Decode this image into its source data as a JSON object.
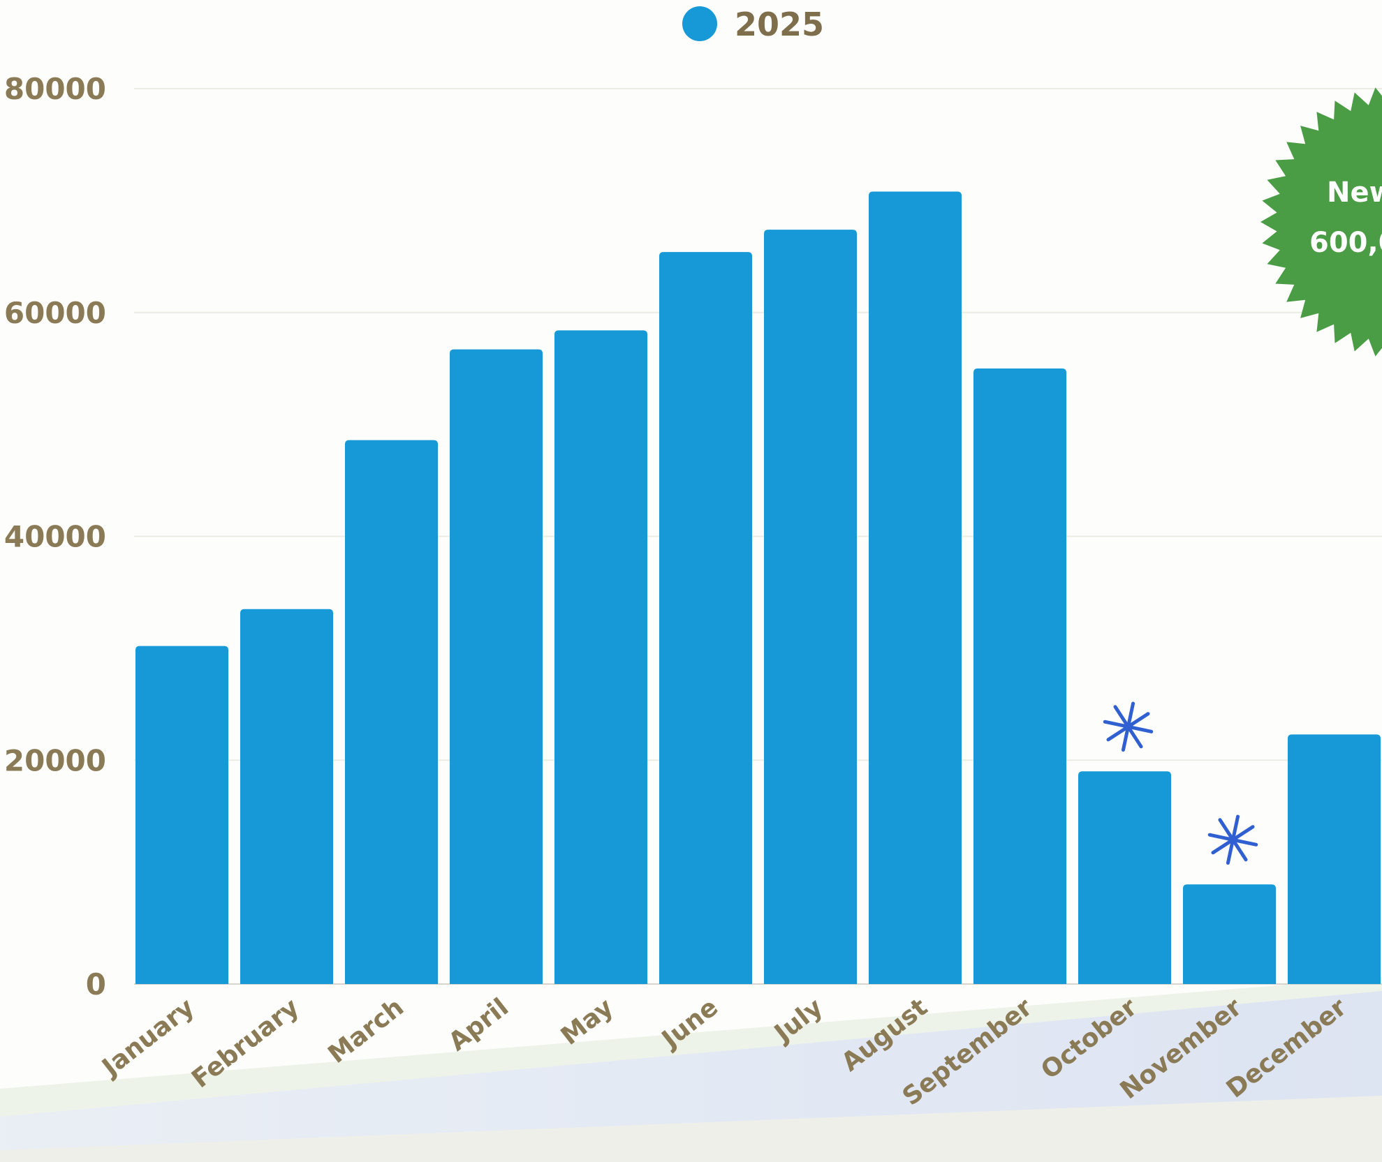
{
  "chart_data": {
    "type": "bar",
    "categories": [
      "January",
      "February",
      "March",
      "April",
      "May",
      "June",
      "July",
      "August",
      "September",
      "October",
      "November",
      "December"
    ],
    "series": [
      {
        "name": "2025",
        "color": "#1699d6",
        "values": [
          30200,
          33500,
          48600,
          56700,
          58400,
          65400,
          67400,
          70800,
          55000,
          19000,
          8900,
          22300
        ]
      }
    ],
    "ylim": [
      0,
      80000
    ],
    "yticks": [
      0,
      20000,
      40000,
      60000,
      80000
    ],
    "grid": true,
    "legend_position": "top-center",
    "annotations": [
      {
        "category": "October",
        "marker": "asterisk",
        "color": "#2f5fd0"
      },
      {
        "category": "November",
        "marker": "asterisk",
        "color": "#2f5fd0"
      }
    ],
    "badge": {
      "line1": "New",
      "line2": "600,0",
      "color": "#4a9c45"
    }
  }
}
